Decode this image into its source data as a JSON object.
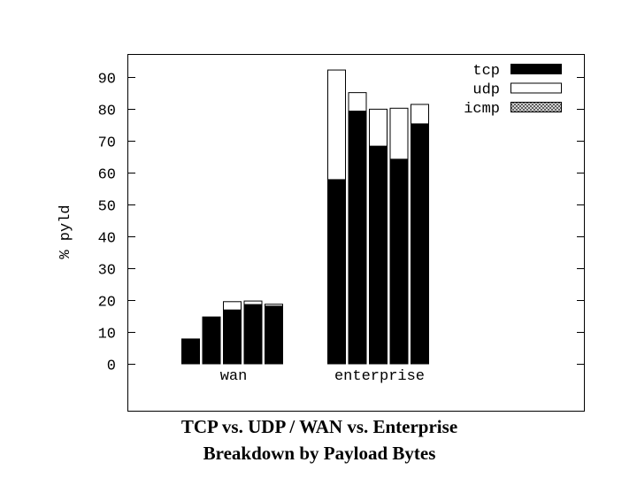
{
  "caption": {
    "line1": "TCP vs. UDP / WAN vs. Enterprise",
    "line2": "Breakdown by Payload Bytes"
  },
  "chart_data": {
    "type": "bar",
    "stacked": true,
    "ylabel": "% pyld",
    "yticks": [
      0,
      10,
      20,
      30,
      40,
      50,
      60,
      70,
      80,
      90
    ],
    "ylim": [
      -15,
      97
    ],
    "legend_position": "top-right",
    "groups": [
      {
        "label": "wan",
        "bars": [
          {
            "tcp": 7.8,
            "udp": 0.0,
            "icmp": 0.0
          },
          {
            "tcp": 14.7,
            "udp": 0.0,
            "icmp": 0.0
          },
          {
            "tcp": 16.9,
            "udp": 2.6,
            "icmp": 0.0
          },
          {
            "tcp": 18.6,
            "udp": 1.1,
            "icmp": 0.0
          },
          {
            "tcp": 18.1,
            "udp": 0.6,
            "icmp": 0.0
          }
        ]
      },
      {
        "label": "enterprise",
        "bars": [
          {
            "tcp": 57.8,
            "udp": 34.4,
            "icmp": 0.0
          },
          {
            "tcp": 79.3,
            "udp": 5.8,
            "icmp": 0.0
          },
          {
            "tcp": 68.3,
            "udp": 11.6,
            "icmp": 0.0
          },
          {
            "tcp": 64.2,
            "udp": 16.0,
            "icmp": 0.0
          },
          {
            "tcp": 75.3,
            "udp": 6.1,
            "icmp": 0.0
          }
        ]
      }
    ],
    "series": [
      {
        "name": "tcp",
        "fill": "solid",
        "color": "#000000"
      },
      {
        "name": "udp",
        "fill": "empty",
        "color": "#ffffff"
      },
      {
        "name": "icmp",
        "fill": "crosshatch",
        "color": "#888888"
      }
    ]
  }
}
